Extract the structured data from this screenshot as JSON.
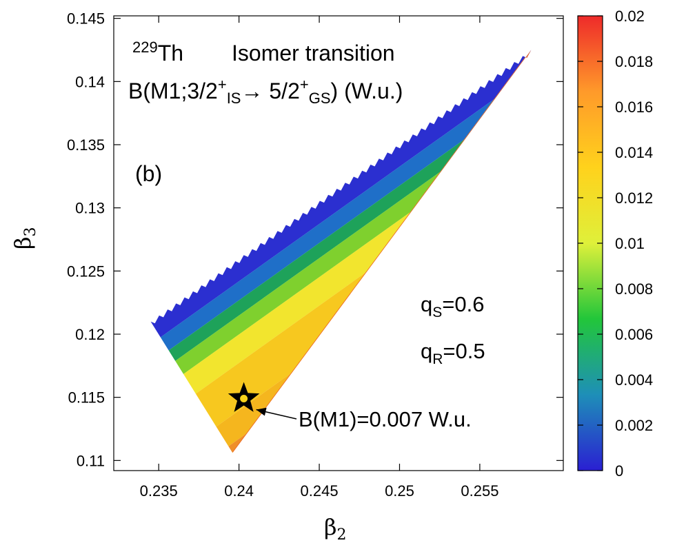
{
  "chart_data": {
    "type": "heatmap",
    "title": {
      "nucleus_mass": "229",
      "nucleus": "Th",
      "text": "Isomer transition",
      "formula_prefix": "B(M1;3/2",
      "sup1": "+",
      "sub1": "IS",
      "arrow": "→",
      "mid": " 5/2",
      "sup2": "+",
      "sub2": "GS",
      "suffix": ") (W.u.)"
    },
    "panel_label": "(b)",
    "xlabel": {
      "base": "β",
      "sub": "2"
    },
    "ylabel": {
      "base": "β",
      "sub": "3"
    },
    "xlim": [
      0.2322,
      0.2602
    ],
    "ylim": [
      0.1092,
      0.1452
    ],
    "xticks": [
      "0.235",
      "0.24",
      "0.245",
      "0.25",
      "0.255"
    ],
    "yticks": [
      "0.11",
      "0.115",
      "0.12",
      "0.125",
      "0.13",
      "0.135",
      "0.14",
      "0.145"
    ],
    "colorbar": {
      "range": [
        0,
        0.02
      ],
      "ticks": [
        "0",
        "0.002",
        "0.004",
        "0.006",
        "0.008",
        "0.01",
        "0.012",
        "0.014",
        "0.016",
        "0.018",
        "0.02"
      ],
      "colors": [
        "#2a1fd2",
        "#1e8fb8",
        "#22c63a",
        "#dff03a",
        "#ffd21c",
        "#ff9a2a",
        "#ee2a2a"
      ]
    },
    "region": {
      "vertices": [
        [
          0.2345,
          0.121
        ],
        [
          0.2396,
          0.1106
        ],
        [
          0.2582,
          0.1425
        ]
      ],
      "band_colors": [
        "#2b2fd0",
        "#1f6fc8",
        "#1ea25a",
        "#7fd02e",
        "#f2e52e",
        "#f7c81f",
        "#f5b61e",
        "#ef8f2a"
      ]
    },
    "params": [
      {
        "base": "q",
        "sub": "S",
        "value": "=0.6"
      },
      {
        "base": "q",
        "sub": "R",
        "value": "=0.5"
      }
    ],
    "marker": {
      "x": 0.2403,
      "y": 0.1149,
      "label": "B(M1)=0.007 W.u."
    }
  }
}
